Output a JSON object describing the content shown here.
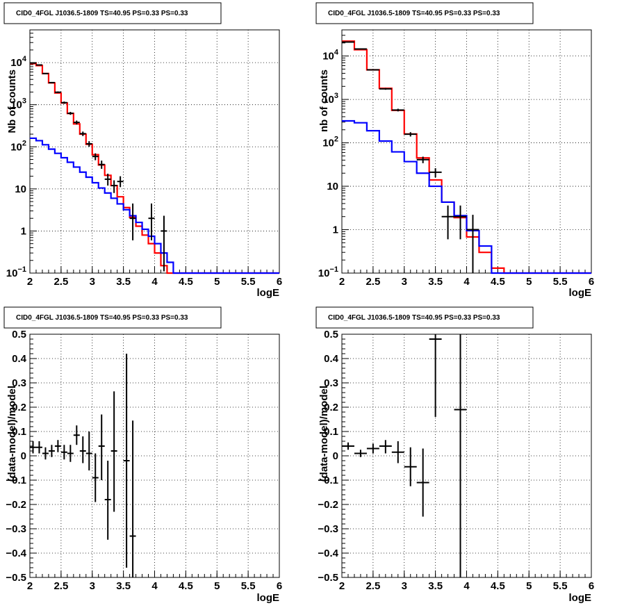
{
  "chart_data": [
    {
      "panel": "top-left",
      "type": "line",
      "title": "CID0_4FGL J1036.5-1809 TS=40.95 PS=0.33 PS=0.33",
      "xlabel": "logE",
      "ylabel": "Nb of counts",
      "xlim": [
        2,
        6
      ],
      "ylim": [
        0.1,
        60000
      ],
      "yscale": "log",
      "grid": true,
      "xticks": [
        "2",
        "2.5",
        "3",
        "3.5",
        "4",
        "4.5",
        "5",
        "5.5",
        "6"
      ],
      "yticks": [
        {
          "value": 0.1,
          "label": "10",
          "exp": "−1"
        },
        {
          "value": 1,
          "label": "1",
          "exp": ""
        },
        {
          "value": 10,
          "label": "10",
          "exp": ""
        },
        {
          "value": 100,
          "label": "10",
          "exp": "2"
        },
        {
          "value": 1000,
          "label": "10",
          "exp": "3"
        },
        {
          "value": 10000,
          "label": "10",
          "exp": "4"
        }
      ],
      "bin_edges": [
        2.0,
        2.1,
        2.2,
        2.3,
        2.4,
        2.5,
        2.6,
        2.7,
        2.8,
        2.9,
        3.0,
        3.1,
        3.2,
        3.3,
        3.4,
        3.5,
        3.6,
        3.7,
        3.8,
        3.9,
        4.0,
        4.1,
        4.2,
        4.3,
        4.4,
        4.5,
        4.6,
        4.7,
        4.8,
        4.9,
        5.0,
        5.1,
        5.2,
        5.3,
        5.4,
        5.5,
        5.6,
        5.7,
        5.8,
        5.9,
        6.0
      ],
      "series": [
        {
          "color": "#ff0000",
          "style": "step",
          "values": [
            9500,
            8500,
            5500,
            3300,
            1900,
            1100,
            620,
            350,
            200,
            115,
            65,
            37,
            21,
            12,
            6.5,
            3.6,
            2.1,
            1.3,
            0.8,
            0.5,
            0.3,
            0.15,
            0.1,
            0.1,
            0.1,
            0.1,
            0.1,
            0.1,
            0.1,
            0.1,
            0.1,
            0.1,
            0.1,
            0.1,
            0.1,
            0.1,
            0.1,
            0.1,
            0.1,
            0.1
          ]
        },
        {
          "color": "#0000ff",
          "style": "step",
          "values": [
            160,
            140,
            112,
            88,
            70,
            55,
            43,
            33,
            25,
            19,
            14,
            10.5,
            8,
            6,
            4.4,
            3.2,
            2.3,
            1.6,
            1.1,
            0.75,
            0.5,
            0.3,
            0.18,
            0.1,
            0.1,
            0.1,
            0.1,
            0.1,
            0.1,
            0.1,
            0.1,
            0.1,
            0.1,
            0.1,
            0.1,
            0.1,
            0.1,
            0.1,
            0.1,
            0.1
          ]
        },
        {
          "color": "#000000",
          "style": "points",
          "points": [
            {
              "x": 2.05,
              "y": 9800,
              "xerr": 0.05,
              "ylo": 9600,
              "yhi": 10000
            },
            {
              "x": 2.15,
              "y": 8800,
              "xerr": 0.05,
              "ylo": 8600,
              "yhi": 9000
            },
            {
              "x": 2.25,
              "y": 5500,
              "xerr": 0.05,
              "ylo": 5350,
              "yhi": 5650
            },
            {
              "x": 2.35,
              "y": 3350,
              "xerr": 0.05,
              "ylo": 3230,
              "yhi": 3470
            },
            {
              "x": 2.45,
              "y": 1980,
              "xerr": 0.05,
              "ylo": 1890,
              "yhi": 2070
            },
            {
              "x": 2.55,
              "y": 1120,
              "xerr": 0.05,
              "ylo": 1050,
              "yhi": 1190
            },
            {
              "x": 2.65,
              "y": 625,
              "xerr": 0.05,
              "ylo": 575,
              "yhi": 675
            },
            {
              "x": 2.75,
              "y": 380,
              "xerr": 0.05,
              "ylo": 340,
              "yhi": 420
            },
            {
              "x": 2.85,
              "y": 205,
              "xerr": 0.05,
              "ylo": 180,
              "yhi": 230
            },
            {
              "x": 2.95,
              "y": 118,
              "xerr": 0.05,
              "ylo": 100,
              "yhi": 136
            },
            {
              "x": 3.05,
              "y": 59,
              "xerr": 0.05,
              "ylo": 48,
              "yhi": 70
            },
            {
              "x": 3.15,
              "y": 38,
              "xerr": 0.05,
              "ylo": 30,
              "yhi": 47
            },
            {
              "x": 3.25,
              "y": 17,
              "xerr": 0.05,
              "ylo": 12,
              "yhi": 23
            },
            {
              "x": 3.35,
              "y": 12,
              "xerr": 0.05,
              "ylo": 8,
              "yhi": 16
            },
            {
              "x": 3.45,
              "y": 15,
              "xerr": 0.05,
              "ylo": 11,
              "yhi": 20
            },
            {
              "x": 3.65,
              "y": 2,
              "xerr": 0.05,
              "ylo": 0.6,
              "yhi": 4.5
            },
            {
              "x": 3.95,
              "y": 2,
              "xerr": 0.05,
              "ylo": 0.6,
              "yhi": 4.5
            },
            {
              "x": 4.15,
              "y": 1,
              "xerr": 0.05,
              "ylo": 0.11,
              "yhi": 2.3
            }
          ]
        }
      ]
    },
    {
      "panel": "top-right",
      "type": "line",
      "title": "CID0_4FGL J1036.5-1809 TS=40.95 PS=0.33 PS=0.33",
      "xlabel": "logE",
      "ylabel": "nb of counts",
      "xlim": [
        2,
        6
      ],
      "ylim": [
        0.1,
        40000
      ],
      "yscale": "log",
      "grid": true,
      "xticks": [
        "2",
        "2.5",
        "3",
        "3.5",
        "4",
        "4.5",
        "5",
        "5.5",
        "6"
      ],
      "yticks": [
        {
          "value": 0.1,
          "label": "10",
          "exp": "−1"
        },
        {
          "value": 1,
          "label": "1",
          "exp": ""
        },
        {
          "value": 10,
          "label": "10",
          "exp": ""
        },
        {
          "value": 100,
          "label": "10",
          "exp": "2"
        },
        {
          "value": 1000,
          "label": "10",
          "exp": "3"
        },
        {
          "value": 10000,
          "label": "10",
          "exp": "4"
        }
      ],
      "bin_edges": [
        2.0,
        2.2,
        2.4,
        2.6,
        2.8,
        3.0,
        3.2,
        3.4,
        3.6,
        3.8,
        4.0,
        4.2,
        4.4,
        4.6,
        4.8,
        5.0,
        5.2,
        5.4,
        5.6,
        5.8,
        6.0
      ],
      "series": [
        {
          "color": "#ff0000",
          "style": "step",
          "values": [
            22000,
            14000,
            4800,
            1800,
            560,
            160,
            45,
            14,
            4.3,
            1.9,
            0.68,
            0.3,
            0.13,
            0.1,
            0.1,
            0.1,
            0.1,
            0.1,
            0.1,
            0.1
          ]
        },
        {
          "color": "#0000ff",
          "style": "step",
          "values": [
            320,
            290,
            190,
            110,
            62,
            37,
            20,
            10,
            4.3,
            2.1,
            0.95,
            0.42,
            0.1,
            0.1,
            0.1,
            0.1,
            0.1,
            0.1,
            0.1,
            0.1
          ]
        },
        {
          "color": "#000000",
          "style": "points",
          "points": [
            {
              "x": 2.1,
              "y": 21000,
              "xerr": 0.1,
              "ylo": 20500,
              "yhi": 21500
            },
            {
              "x": 2.3,
              "y": 14500,
              "xerr": 0.1,
              "ylo": 14200,
              "yhi": 14800
            },
            {
              "x": 2.5,
              "y": 4800,
              "xerr": 0.1,
              "ylo": 4650,
              "yhi": 4950
            },
            {
              "x": 2.7,
              "y": 1750,
              "xerr": 0.1,
              "ylo": 1670,
              "yhi": 1830
            },
            {
              "x": 2.9,
              "y": 570,
              "xerr": 0.1,
              "ylo": 530,
              "yhi": 610
            },
            {
              "x": 3.1,
              "y": 158,
              "xerr": 0.1,
              "ylo": 140,
              "yhi": 176
            },
            {
              "x": 3.3,
              "y": 41,
              "xerr": 0.1,
              "ylo": 34,
              "yhi": 48
            },
            {
              "x": 3.5,
              "y": 21,
              "xerr": 0.1,
              "ylo": 16,
              "yhi": 26
            },
            {
              "x": 3.7,
              "y": 2,
              "xerr": 0.1,
              "ylo": 0.6,
              "yhi": 3.6
            },
            {
              "x": 3.9,
              "y": 2,
              "xerr": 0.1,
              "ylo": 0.6,
              "yhi": 3.6
            },
            {
              "x": 4.1,
              "y": 1,
              "xerr": 0.1,
              "ylo": 0.1,
              "yhi": 2.2
            }
          ]
        }
      ]
    },
    {
      "panel": "bottom-left",
      "type": "scatter",
      "title": "CID0_4FGL J1036.5-1809 TS=40.95 PS=0.33 PS=0.33",
      "xlabel": "logE",
      "ylabel": "(data-model)/model",
      "xlim": [
        2,
        6
      ],
      "ylim": [
        -0.5,
        0.5
      ],
      "yscale": "linear",
      "grid": true,
      "xticks": [
        "2",
        "2.5",
        "3",
        "3.5",
        "4",
        "4.5",
        "5",
        "5.5",
        "6"
      ],
      "yticks": [
        {
          "value": -0.5,
          "label": "−0.5"
        },
        {
          "value": -0.4,
          "label": "−0.4"
        },
        {
          "value": -0.3,
          "label": "−0.3"
        },
        {
          "value": -0.2,
          "label": "−0.2"
        },
        {
          "value": -0.1,
          "label": "−0.1"
        },
        {
          "value": 0,
          "label": "0"
        },
        {
          "value": 0.1,
          "label": "0.1"
        },
        {
          "value": 0.2,
          "label": "0.2"
        },
        {
          "value": 0.3,
          "label": "0.3"
        },
        {
          "value": 0.4,
          "label": "0.4"
        },
        {
          "value": 0.5,
          "label": "0.5"
        }
      ],
      "series": [
        {
          "color": "#000000",
          "style": "points",
          "points": [
            {
              "x": 2.05,
              "y": 0.035,
              "xerr": 0.05,
              "ylo": 0.01,
              "yhi": 0.06
            },
            {
              "x": 2.15,
              "y": 0.035,
              "xerr": 0.05,
              "ylo": 0.01,
              "yhi": 0.06
            },
            {
              "x": 2.25,
              "y": 0.01,
              "xerr": 0.05,
              "ylo": -0.015,
              "yhi": 0.035
            },
            {
              "x": 2.35,
              "y": 0.02,
              "xerr": 0.05,
              "ylo": -0.005,
              "yhi": 0.045
            },
            {
              "x": 2.45,
              "y": 0.04,
              "xerr": 0.05,
              "ylo": 0.015,
              "yhi": 0.065
            },
            {
              "x": 2.55,
              "y": 0.015,
              "xerr": 0.05,
              "ylo": -0.015,
              "yhi": 0.045
            },
            {
              "x": 2.65,
              "y": 0.01,
              "xerr": 0.05,
              "ylo": -0.025,
              "yhi": 0.045
            },
            {
              "x": 2.75,
              "y": 0.085,
              "xerr": 0.05,
              "ylo": 0.045,
              "yhi": 0.125
            },
            {
              "x": 2.85,
              "y": 0.02,
              "xerr": 0.05,
              "ylo": -0.03,
              "yhi": 0.08
            },
            {
              "x": 2.95,
              "y": 0.01,
              "xerr": 0.05,
              "ylo": -0.06,
              "yhi": 0.1
            },
            {
              "x": 3.05,
              "y": -0.09,
              "xerr": 0.05,
              "ylo": -0.19,
              "yhi": 0.01
            },
            {
              "x": 3.15,
              "y": 0.04,
              "xerr": 0.05,
              "ylo": -0.1,
              "yhi": 0.17
            },
            {
              "x": 3.25,
              "y": -0.18,
              "xerr": 0.05,
              "ylo": -0.345,
              "yhi": -0.02
            },
            {
              "x": 3.35,
              "y": 0.02,
              "xerr": 0.05,
              "ylo": -0.23,
              "yhi": 0.265
            },
            {
              "x": 3.55,
              "y": -0.02,
              "xerr": 0.05,
              "ylo": -0.46,
              "yhi": 0.42
            },
            {
              "x": 3.65,
              "y": -0.33,
              "xerr": 0.05,
              "ylo": -0.5,
              "yhi": 0.145
            }
          ]
        }
      ]
    },
    {
      "panel": "bottom-right",
      "type": "scatter",
      "title": "CID0_4FGL J1036.5-1809 TS=40.95 PS=0.33 PS=0.33",
      "xlabel": "logE",
      "ylabel": "(data-model)/model",
      "xlim": [
        2,
        6
      ],
      "ylim": [
        -0.5,
        0.5
      ],
      "yscale": "linear",
      "grid": true,
      "xticks": [
        "2",
        "2.5",
        "3",
        "3.5",
        "4",
        "4.5",
        "5",
        "5.5",
        "6"
      ],
      "yticks": [
        {
          "value": -0.5,
          "label": "−0.5"
        },
        {
          "value": -0.4,
          "label": "−0.4"
        },
        {
          "value": -0.3,
          "label": "−0.3"
        },
        {
          "value": -0.2,
          "label": "−0.2"
        },
        {
          "value": -0.1,
          "label": "−0.1"
        },
        {
          "value": 0,
          "label": "0"
        },
        {
          "value": 0.1,
          "label": "0.1"
        },
        {
          "value": 0.2,
          "label": "0.2"
        },
        {
          "value": 0.3,
          "label": "0.3"
        },
        {
          "value": 0.4,
          "label": "0.4"
        },
        {
          "value": 0.5,
          "label": "0.5"
        }
      ],
      "series": [
        {
          "color": "#000000",
          "style": "points",
          "points": [
            {
              "x": 2.1,
              "y": 0.04,
              "xerr": 0.1,
              "ylo": 0.025,
              "yhi": 0.055
            },
            {
              "x": 2.3,
              "y": 0.01,
              "xerr": 0.1,
              "ylo": -0.005,
              "yhi": 0.025
            },
            {
              "x": 2.5,
              "y": 0.03,
              "xerr": 0.1,
              "ylo": 0.01,
              "yhi": 0.05
            },
            {
              "x": 2.7,
              "y": 0.04,
              "xerr": 0.1,
              "ylo": 0.01,
              "yhi": 0.065
            },
            {
              "x": 2.9,
              "y": 0.015,
              "xerr": 0.1,
              "ylo": -0.03,
              "yhi": 0.06
            },
            {
              "x": 3.1,
              "y": -0.045,
              "xerr": 0.1,
              "ylo": -0.125,
              "yhi": 0.035
            },
            {
              "x": 3.3,
              "y": -0.11,
              "xerr": 0.1,
              "ylo": -0.25,
              "yhi": 0.03
            },
            {
              "x": 3.5,
              "y": 0.48,
              "xerr": 0.1,
              "ylo": 0.16,
              "yhi": 0.5
            },
            {
              "x": 3.9,
              "y": 0.19,
              "xerr": 0.1,
              "ylo": -0.5,
              "yhi": 0.5
            }
          ]
        }
      ]
    }
  ]
}
